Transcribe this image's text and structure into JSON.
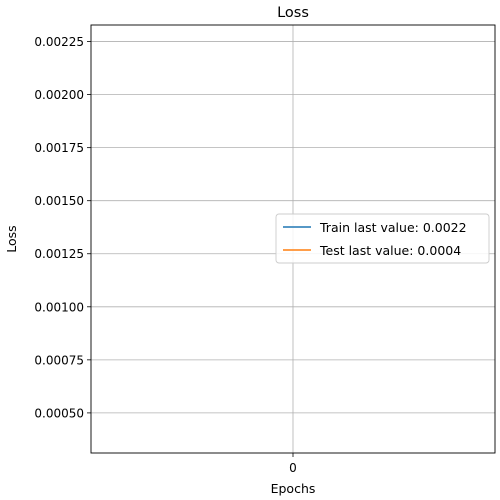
{
  "chart_data": {
    "type": "line",
    "title": "Loss",
    "xlabel": "Epochs",
    "ylabel": "Loss",
    "x": [
      0
    ],
    "xlim": [
      -1,
      1
    ],
    "ylim": [
      0.000311,
      0.002328
    ],
    "xticks": [
      0
    ],
    "xtick_labels": [
      "0"
    ],
    "yticks": [
      0.0005,
      0.00075,
      0.001,
      0.00125,
      0.0015,
      0.00175,
      0.002,
      0.00225
    ],
    "ytick_labels": [
      "0.00050",
      "0.00075",
      "0.00100",
      "0.00125",
      "0.00150",
      "0.00175",
      "0.00200",
      "0.00225"
    ],
    "grid": true,
    "legend_position": "center-right",
    "series": [
      {
        "name": "Train last value: 0.0022",
        "values": [
          0.0022
        ],
        "color": "#1f77b4"
      },
      {
        "name": "Test last value: 0.0004",
        "values": [
          0.0004
        ],
        "color": "#ff7f0e"
      }
    ]
  }
}
